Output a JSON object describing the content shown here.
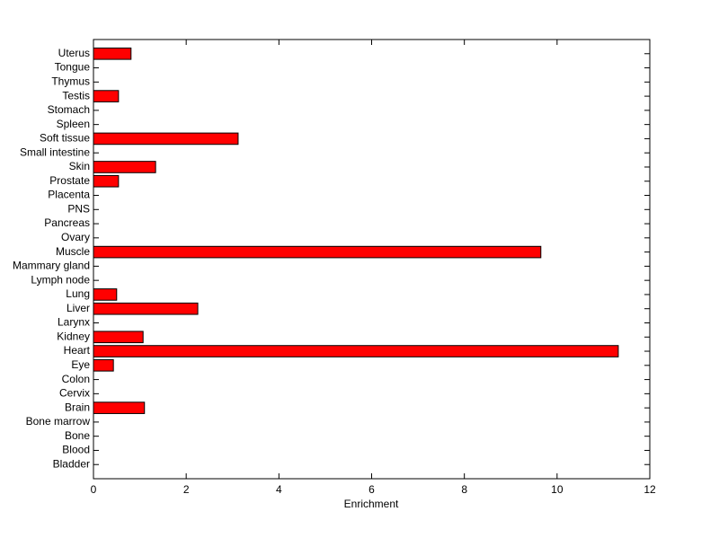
{
  "chart_data": {
    "type": "barh",
    "xlabel": "Enrichment",
    "categories": [
      "Bladder",
      "Blood",
      "Bone",
      "Bone marrow",
      "Brain",
      "Cervix",
      "Colon",
      "Eye",
      "Heart",
      "Kidney",
      "Larynx",
      "Liver",
      "Lung",
      "Lymph node",
      "Mammary gland",
      "Muscle",
      "Ovary",
      "Pancreas",
      "PNS",
      "Placenta",
      "Prostate",
      "Skin",
      "Small intestine",
      "Soft tissue",
      "Spleen",
      "Stomach",
      "Testis",
      "Thymus",
      "Tongue",
      "Uterus"
    ],
    "values": [
      0,
      0,
      0,
      0,
      1.1,
      0,
      0,
      0.43,
      11.32,
      1.07,
      0,
      2.25,
      0.5,
      0,
      0,
      9.65,
      0,
      0,
      0,
      0,
      0.54,
      1.34,
      0,
      3.12,
      0,
      0,
      0.54,
      0,
      0,
      0.81
    ],
    "color": "#ff0000",
    "xlim": [
      0,
      12
    ],
    "xticks": [
      0,
      2,
      4,
      6,
      8,
      10,
      12
    ]
  }
}
